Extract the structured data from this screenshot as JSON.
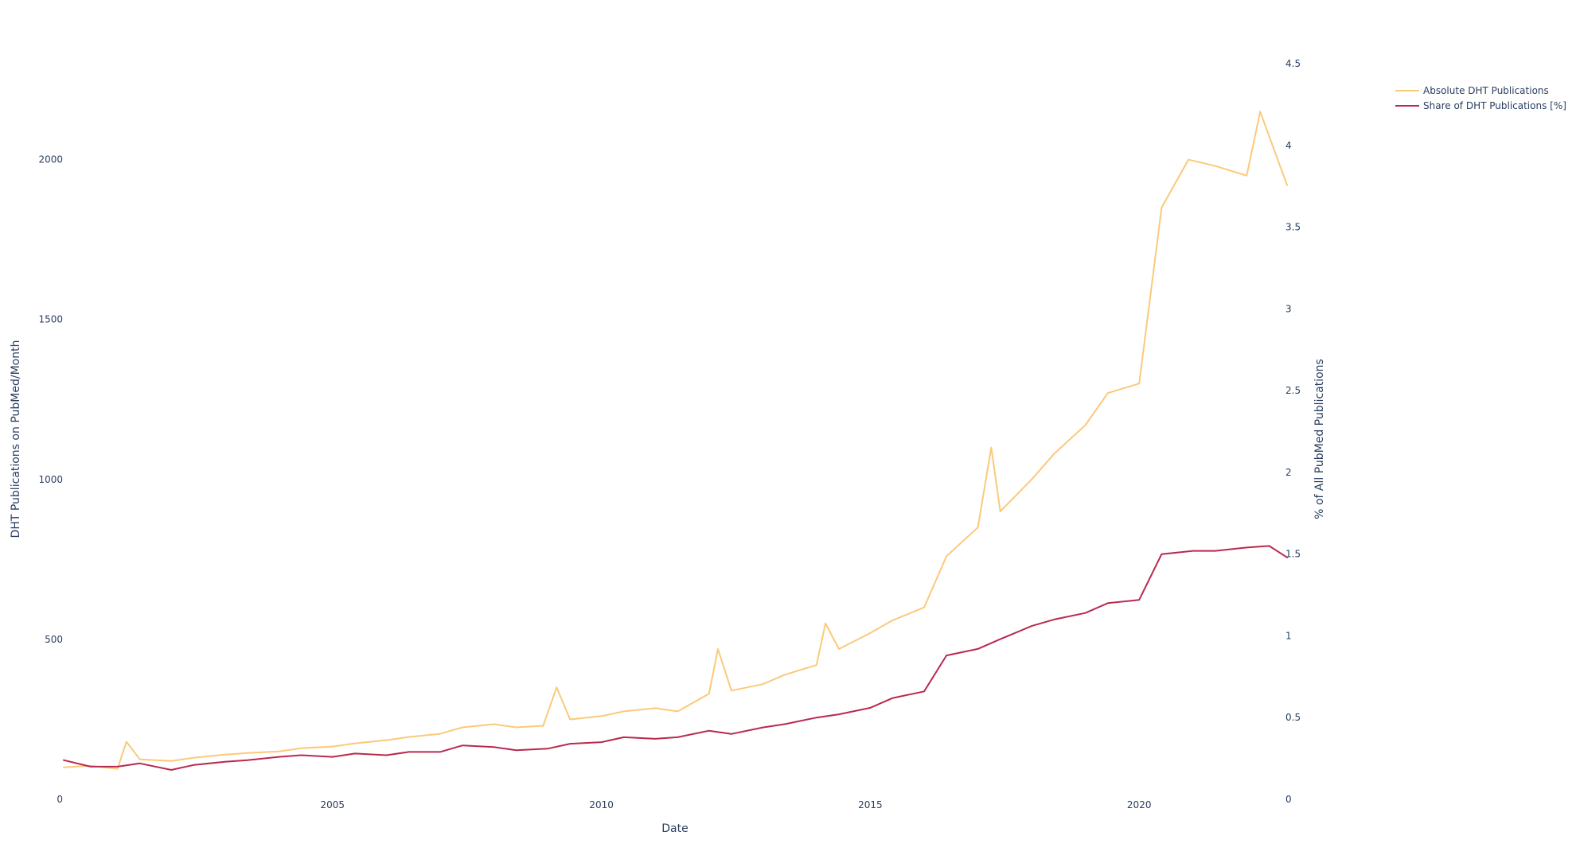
{
  "chart_data": {
    "type": "line",
    "xlabel": "Date",
    "ylabel_left": "DHT Publications on PubMed/Month",
    "ylabel_right": "% of All PubMed Publications",
    "x_range": [
      "2000-01",
      "2022-10"
    ],
    "x_ticks": [
      "2005",
      "2010",
      "2015",
      "2020"
    ],
    "y_left_range": [
      0,
      2300
    ],
    "y_left_ticks": [
      "0",
      "500",
      "1000",
      "1500",
      "2000"
    ],
    "y_right_range": [
      0,
      4.5
    ],
    "y_right_ticks": [
      "0",
      "0.5",
      "1",
      "1.5",
      "2",
      "2.5",
      "3",
      "3.5",
      "4",
      "4.5"
    ],
    "grid": false,
    "legend_position": "top-right",
    "series": [
      {
        "name": "Absolute DHT Publications",
        "axis": "left",
        "color": "#fbc97a",
        "points": [
          [
            "2000-01",
            100
          ],
          [
            "2000-07",
            105
          ],
          [
            "2001-01",
            95
          ],
          [
            "2001-03",
            180
          ],
          [
            "2001-06",
            125
          ],
          [
            "2002-01",
            120
          ],
          [
            "2002-06",
            130
          ],
          [
            "2003-01",
            140
          ],
          [
            "2003-06",
            145
          ],
          [
            "2004-01",
            150
          ],
          [
            "2004-06",
            160
          ],
          [
            "2005-01",
            165
          ],
          [
            "2005-06",
            175
          ],
          [
            "2006-01",
            185
          ],
          [
            "2006-06",
            195
          ],
          [
            "2007-01",
            205
          ],
          [
            "2007-06",
            225
          ],
          [
            "2008-01",
            235
          ],
          [
            "2008-06",
            225
          ],
          [
            "2008-12",
            230
          ],
          [
            "2009-03",
            350
          ],
          [
            "2009-06",
            250
          ],
          [
            "2010-01",
            260
          ],
          [
            "2010-06",
            275
          ],
          [
            "2011-01",
            285
          ],
          [
            "2011-06",
            275
          ],
          [
            "2012-01",
            330
          ],
          [
            "2012-03",
            470
          ],
          [
            "2012-06",
            340
          ],
          [
            "2013-01",
            360
          ],
          [
            "2013-06",
            390
          ],
          [
            "2014-01",
            420
          ],
          [
            "2014-03",
            550
          ],
          [
            "2014-06",
            470
          ],
          [
            "2015-01",
            520
          ],
          [
            "2015-06",
            560
          ],
          [
            "2016-01",
            600
          ],
          [
            "2016-06",
            760
          ],
          [
            "2017-01",
            850
          ],
          [
            "2017-04",
            1100
          ],
          [
            "2017-06",
            900
          ],
          [
            "2018-01",
            1000
          ],
          [
            "2018-06",
            1080
          ],
          [
            "2019-01",
            1170
          ],
          [
            "2019-06",
            1270
          ],
          [
            "2020-01",
            1300
          ],
          [
            "2020-06",
            1850
          ],
          [
            "2020-12",
            2000
          ],
          [
            "2021-06",
            1980
          ],
          [
            "2022-01",
            1950
          ],
          [
            "2022-04",
            2150
          ],
          [
            "2022-10",
            1920
          ]
        ]
      },
      {
        "name": "Share of DHT Publications [%]",
        "axis": "right",
        "color": "#b9294f",
        "points": [
          [
            "2000-01",
            0.24
          ],
          [
            "2000-07",
            0.2
          ],
          [
            "2001-01",
            0.2
          ],
          [
            "2001-06",
            0.22
          ],
          [
            "2002-01",
            0.18
          ],
          [
            "2002-06",
            0.21
          ],
          [
            "2003-01",
            0.23
          ],
          [
            "2003-06",
            0.24
          ],
          [
            "2004-01",
            0.26
          ],
          [
            "2004-06",
            0.27
          ],
          [
            "2005-01",
            0.26
          ],
          [
            "2005-06",
            0.28
          ],
          [
            "2006-01",
            0.27
          ],
          [
            "2006-06",
            0.29
          ],
          [
            "2007-01",
            0.29
          ],
          [
            "2007-06",
            0.33
          ],
          [
            "2008-01",
            0.32
          ],
          [
            "2008-06",
            0.3
          ],
          [
            "2009-01",
            0.31
          ],
          [
            "2009-06",
            0.34
          ],
          [
            "2010-01",
            0.35
          ],
          [
            "2010-06",
            0.38
          ],
          [
            "2011-01",
            0.37
          ],
          [
            "2011-06",
            0.38
          ],
          [
            "2012-01",
            0.42
          ],
          [
            "2012-06",
            0.4
          ],
          [
            "2013-01",
            0.44
          ],
          [
            "2013-06",
            0.46
          ],
          [
            "2014-01",
            0.5
          ],
          [
            "2014-06",
            0.52
          ],
          [
            "2015-01",
            0.56
          ],
          [
            "2015-06",
            0.62
          ],
          [
            "2016-01",
            0.66
          ],
          [
            "2016-06",
            0.88
          ],
          [
            "2017-01",
            0.92
          ],
          [
            "2017-06",
            0.98
          ],
          [
            "2018-01",
            1.06
          ],
          [
            "2018-06",
            1.1
          ],
          [
            "2019-01",
            1.14
          ],
          [
            "2019-06",
            1.2
          ],
          [
            "2020-01",
            1.22
          ],
          [
            "2020-06",
            1.5
          ],
          [
            "2021-01",
            1.52
          ],
          [
            "2021-06",
            1.52
          ],
          [
            "2022-01",
            1.54
          ],
          [
            "2022-06",
            1.55
          ],
          [
            "2022-10",
            1.48
          ]
        ]
      }
    ]
  }
}
